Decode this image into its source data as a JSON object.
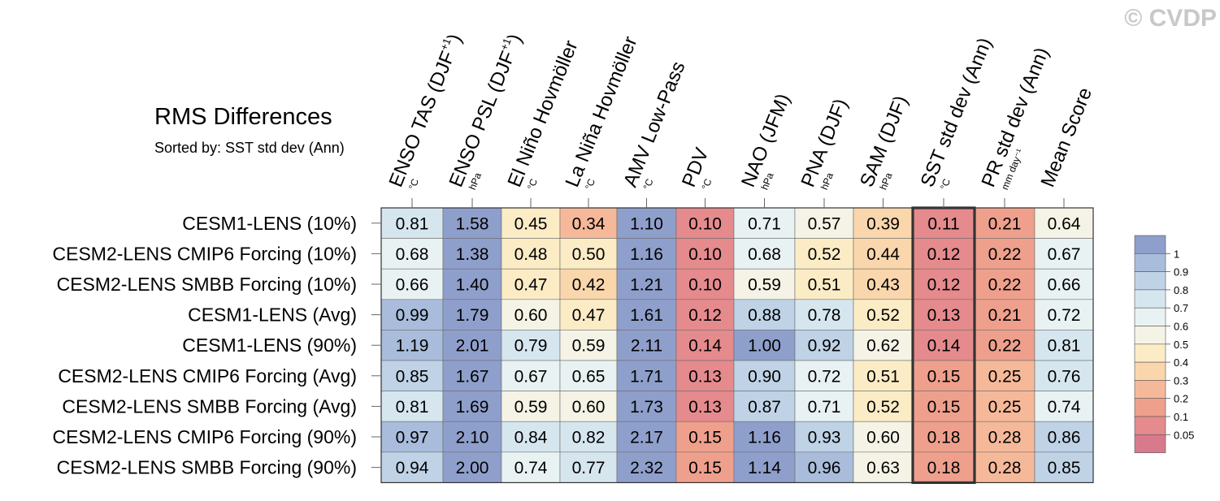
{
  "watermark": "© CVDP",
  "chart_data": {
    "type": "heatmap",
    "title": "RMS Differences",
    "subtitle": "Sorted by: SST std dev (Ann)",
    "columns": [
      {
        "name": "ENSO TAS (DJF+1)",
        "label": "ENSO TAS (DJF",
        "sup": "+1",
        "close": ")",
        "unit": "°C"
      },
      {
        "name": "ENSO PSL (DJF+1)",
        "label": "ENSO PSL (DJF",
        "sup": "+1",
        "close": ")",
        "unit": "hPa"
      },
      {
        "name": "El Niño Hovmöller",
        "label": "El Niño Hovmöller",
        "sup": "",
        "close": "",
        "unit": "°C"
      },
      {
        "name": "La Niña Hovmöller",
        "label": "La Niña Hovmöller",
        "sup": "",
        "close": "",
        "unit": "°C"
      },
      {
        "name": "AMV Low-Pass",
        "label": "AMV Low-Pass",
        "sup": "",
        "close": "",
        "unit": "°C"
      },
      {
        "name": "PDV",
        "label": "PDV",
        "sup": "",
        "close": "",
        "unit": "°C"
      },
      {
        "name": "NAO (JFM)",
        "label": "NAO (JFM)",
        "sup": "",
        "close": "",
        "unit": "hPa"
      },
      {
        "name": "PNA (DJF)",
        "label": "PNA (DJF)",
        "sup": "",
        "close": "",
        "unit": "hPa"
      },
      {
        "name": "SAM (DJF)",
        "label": "SAM (DJF)",
        "sup": "",
        "close": "",
        "unit": "hPa"
      },
      {
        "name": "SST std dev (Ann)",
        "label": "SST std dev (Ann)",
        "sup": "",
        "close": "",
        "unit": "°C"
      },
      {
        "name": "PR std dev (Ann)",
        "label": "PR std dev (Ann)",
        "sup": "",
        "close": "",
        "unit": "mm day⁻¹"
      },
      {
        "name": "Mean Score",
        "label": "Mean Score",
        "sup": "",
        "close": "",
        "unit": ""
      }
    ],
    "rows": [
      "CESM1-LENS (10%)",
      "CESM2-LENS CMIP6 Forcing (10%)",
      "CESM2-LENS SMBB Forcing (10%)",
      "CESM1-LENS (Avg)",
      "CESM1-LENS (90%)",
      "CESM2-LENS CMIP6 Forcing (Avg)",
      "CESM2-LENS SMBB Forcing (Avg)",
      "CESM2-LENS CMIP6 Forcing (90%)",
      "CESM2-LENS SMBB Forcing (90%)"
    ],
    "values": [
      [
        0.81,
        1.58,
        0.45,
        0.34,
        1.1,
        0.1,
        0.71,
        0.57,
        0.39,
        0.11,
        0.21,
        0.64
      ],
      [
        0.68,
        1.38,
        0.48,
        0.5,
        1.16,
        0.1,
        0.68,
        0.52,
        0.44,
        0.12,
        0.22,
        0.67
      ],
      [
        0.66,
        1.4,
        0.47,
        0.42,
        1.21,
        0.1,
        0.59,
        0.51,
        0.43,
        0.12,
        0.22,
        0.66
      ],
      [
        0.99,
        1.79,
        0.6,
        0.47,
        1.61,
        0.12,
        0.88,
        0.78,
        0.52,
        0.13,
        0.21,
        0.72
      ],
      [
        1.19,
        2.01,
        0.79,
        0.59,
        2.11,
        0.14,
        1.0,
        0.92,
        0.62,
        0.14,
        0.22,
        0.81
      ],
      [
        0.85,
        1.67,
        0.67,
        0.65,
        1.71,
        0.13,
        0.9,
        0.72,
        0.51,
        0.15,
        0.25,
        0.76
      ],
      [
        0.81,
        1.69,
        0.59,
        0.6,
        1.73,
        0.13,
        0.87,
        0.71,
        0.52,
        0.15,
        0.25,
        0.74
      ],
      [
        0.97,
        2.1,
        0.84,
        0.82,
        2.17,
        0.15,
        1.16,
        0.93,
        0.6,
        0.18,
        0.28,
        0.86
      ],
      [
        0.94,
        2.0,
        0.74,
        0.77,
        2.32,
        0.15,
        1.14,
        0.96,
        0.63,
        0.18,
        0.28,
        0.85
      ]
    ],
    "highlight_column": "SST std dev (Ann)",
    "colorbar": {
      "levels": [
        "1",
        "0.9",
        "0.8",
        "0.7",
        "0.6",
        "0.5",
        "0.4",
        "0.3",
        "0.2",
        "0.1",
        "0.05"
      ],
      "colors": [
        "#8f9fcc",
        "#a9bcdb",
        "#bfd2e6",
        "#d6e6ef",
        "#e9f2f2",
        "#f4f3e6",
        "#fbecc6",
        "#f9d6ac",
        "#f5b99a",
        "#eea08d",
        "#e58a8d",
        "#d97a8c"
      ]
    }
  }
}
